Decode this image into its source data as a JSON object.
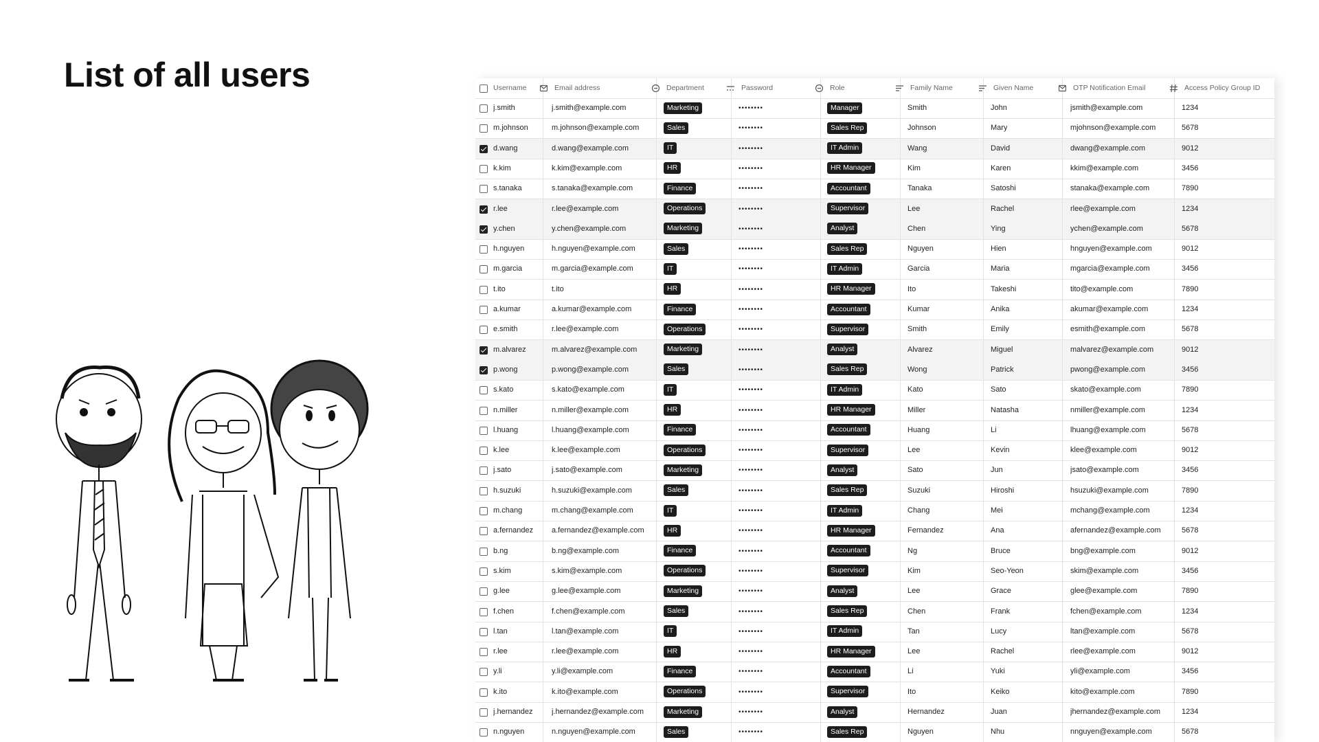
{
  "header": {
    "title": "List of all users"
  },
  "table": {
    "columns": [
      "Username",
      "Email address",
      "Department",
      "Password",
      "Role",
      "Family Name",
      "Given Name",
      "OTP Notification Email",
      "Access Policy Group ID"
    ],
    "rows": [
      {
        "selected": false,
        "username": "j.smith",
        "email": "j.smith@example.com",
        "department": "Marketing",
        "password": "••••••••",
        "role": "Manager",
        "family_name": "Smith",
        "given_name": "John",
        "otp_email": "jsmith@example.com",
        "access_policy_group_id": 1234
      },
      {
        "selected": false,
        "username": "m.johnson",
        "email": "m.johnson@example.com",
        "department": "Sales",
        "password": "••••••••",
        "role": "Sales Rep",
        "family_name": "Johnson",
        "given_name": "Mary",
        "otp_email": "mjohnson@example.com",
        "access_policy_group_id": 5678
      },
      {
        "selected": true,
        "username": "d.wang",
        "email": "d.wang@example.com",
        "department": "IT",
        "password": "••••••••",
        "role": "IT Admin",
        "family_name": "Wang",
        "given_name": "David",
        "otp_email": "dwang@example.com",
        "access_policy_group_id": 9012
      },
      {
        "selected": false,
        "username": "k.kim",
        "email": "k.kim@example.com",
        "department": "HR",
        "password": "••••••••",
        "role": "HR Manager",
        "family_name": "Kim",
        "given_name": "Karen",
        "otp_email": "kkim@example.com",
        "access_policy_group_id": 3456
      },
      {
        "selected": false,
        "username": "s.tanaka",
        "email": "s.tanaka@example.com",
        "department": "Finance",
        "password": "••••••••",
        "role": "Accountant",
        "family_name": "Tanaka",
        "given_name": "Satoshi",
        "otp_email": "stanaka@example.com",
        "access_policy_group_id": 7890
      },
      {
        "selected": true,
        "username": "r.lee",
        "email": "r.lee@example.com",
        "department": "Operations",
        "password": "••••••••",
        "role": "Supervisor",
        "family_name": "Lee",
        "given_name": "Rachel",
        "otp_email": "rlee@example.com",
        "access_policy_group_id": 1234
      },
      {
        "selected": true,
        "username": "y.chen",
        "email": "y.chen@example.com",
        "department": "Marketing",
        "password": "••••••••",
        "role": "Analyst",
        "family_name": "Chen",
        "given_name": "Ying",
        "otp_email": "ychen@example.com",
        "access_policy_group_id": 5678
      },
      {
        "selected": false,
        "username": "h.nguyen",
        "email": "h.nguyen@example.com",
        "department": "Sales",
        "password": "••••••••",
        "role": "Sales Rep",
        "family_name": "Nguyen",
        "given_name": "Hien",
        "otp_email": "hnguyen@example.com",
        "access_policy_group_id": 9012
      },
      {
        "selected": false,
        "username": "m.garcia",
        "email": "m.garcia@example.com",
        "department": "IT",
        "password": "••••••••",
        "role": "IT Admin",
        "family_name": "Garcia",
        "given_name": "Maria",
        "otp_email": "mgarcia@example.com",
        "access_policy_group_id": 3456
      },
      {
        "selected": false,
        "username": "t.ito",
        "email": "t.ito",
        "department": "HR",
        "password": "••••••••",
        "role": "HR Manager",
        "family_name": "Ito",
        "given_name": "Takeshi",
        "otp_email": "tito@example.com",
        "access_policy_group_id": 7890
      },
      {
        "selected": false,
        "username": "a.kumar",
        "email": "a.kumar@example.com",
        "department": "Finance",
        "password": "••••••••",
        "role": "Accountant",
        "family_name": "Kumar",
        "given_name": "Anika",
        "otp_email": "akumar@example.com",
        "access_policy_group_id": 1234
      },
      {
        "selected": false,
        "username": "e.smith",
        "email": "r.lee@example.com",
        "department": "Operations",
        "password": "••••••••",
        "role": "Supervisor",
        "family_name": "Smith",
        "given_name": "Emily",
        "otp_email": "esmith@example.com",
        "access_policy_group_id": 5678
      },
      {
        "selected": true,
        "username": "m.alvarez",
        "email": "m.alvarez@example.com",
        "department": "Marketing",
        "password": "••••••••",
        "role": "Analyst",
        "family_name": "Alvarez",
        "given_name": "Miguel",
        "otp_email": "malvarez@example.com",
        "access_policy_group_id": 9012
      },
      {
        "selected": true,
        "username": "p.wong",
        "email": "p.wong@example.com",
        "department": "Sales",
        "password": "••••••••",
        "role": "Sales Rep",
        "family_name": "Wong",
        "given_name": "Patrick",
        "otp_email": "pwong@example.com",
        "access_policy_group_id": 3456
      },
      {
        "selected": false,
        "username": "s.kato",
        "email": "s.kato@example.com",
        "department": "IT",
        "password": "••••••••",
        "role": "IT Admin",
        "family_name": "Kato",
        "given_name": "Sato",
        "otp_email": "skato@example.com",
        "access_policy_group_id": 7890
      },
      {
        "selected": false,
        "username": "n.miller",
        "email": "n.miller@example.com",
        "department": "HR",
        "password": "••••••••",
        "role": "HR Manager",
        "family_name": "Miller",
        "given_name": "Natasha",
        "otp_email": "nmiller@example.com",
        "access_policy_group_id": 1234
      },
      {
        "selected": false,
        "username": "l.huang",
        "email": "l.huang@example.com",
        "department": "Finance",
        "password": "••••••••",
        "role": "Accountant",
        "family_name": "Huang",
        "given_name": "Li",
        "otp_email": "lhuang@example.com",
        "access_policy_group_id": 5678
      },
      {
        "selected": false,
        "username": "k.lee",
        "email": "k.lee@example.com",
        "department": "Operations",
        "password": "••••••••",
        "role": "Supervisor",
        "family_name": "Lee",
        "given_name": "Kevin",
        "otp_email": "klee@example.com",
        "access_policy_group_id": 9012
      },
      {
        "selected": false,
        "username": "j.sato",
        "email": "j.sato@example.com",
        "department": "Marketing",
        "password": "••••••••",
        "role": "Analyst",
        "family_name": "Sato",
        "given_name": "Jun",
        "otp_email": "jsato@example.com",
        "access_policy_group_id": 3456
      },
      {
        "selected": false,
        "username": "h.suzuki",
        "email": "h.suzuki@example.com",
        "department": "Sales",
        "password": "••••••••",
        "role": "Sales Rep",
        "family_name": "Suzuki",
        "given_name": "Hiroshi",
        "otp_email": "hsuzuki@example.com",
        "access_policy_group_id": 7890
      },
      {
        "selected": false,
        "username": "m.chang",
        "email": "m.chang@example.com",
        "department": "IT",
        "password": "••••••••",
        "role": "IT Admin",
        "family_name": "Chang",
        "given_name": "Mei",
        "otp_email": "mchang@example.com",
        "access_policy_group_id": 1234
      },
      {
        "selected": false,
        "username": "a.fernandez",
        "email": "a.fernandez@example.com",
        "department": "HR",
        "password": "••••••••",
        "role": "HR Manager",
        "family_name": "Fernandez",
        "given_name": "Ana",
        "otp_email": "afernandez@example.com",
        "access_policy_group_id": 5678
      },
      {
        "selected": false,
        "username": "b.ng",
        "email": "b.ng@example.com",
        "department": "Finance",
        "password": "••••••••",
        "role": "Accountant",
        "family_name": "Ng",
        "given_name": "Bruce",
        "otp_email": "bng@example.com",
        "access_policy_group_id": 9012
      },
      {
        "selected": false,
        "username": "s.kim",
        "email": "s.kim@example.com",
        "department": "Operations",
        "password": "••••••••",
        "role": "Supervisor",
        "family_name": "Kim",
        "given_name": "Seo-Yeon",
        "otp_email": "skim@example.com",
        "access_policy_group_id": 3456
      },
      {
        "selected": false,
        "username": "g.lee",
        "email": "g.lee@example.com",
        "department": "Marketing",
        "password": "••••••••",
        "role": "Analyst",
        "family_name": "Lee",
        "given_name": "Grace",
        "otp_email": "glee@example.com",
        "access_policy_group_id": 7890
      },
      {
        "selected": false,
        "username": "f.chen",
        "email": "f.chen@example.com",
        "department": "Sales",
        "password": "••••••••",
        "role": "Sales Rep",
        "family_name": "Chen",
        "given_name": "Frank",
        "otp_email": "fchen@example.com",
        "access_policy_group_id": 1234
      },
      {
        "selected": false,
        "username": "l.tan",
        "email": "l.tan@example.com",
        "department": "IT",
        "password": "••••••••",
        "role": "IT Admin",
        "family_name": "Tan",
        "given_name": "Lucy",
        "otp_email": "ltan@example.com",
        "access_policy_group_id": 5678
      },
      {
        "selected": false,
        "username": "r.lee",
        "email": "r.lee@example.com",
        "department": "HR",
        "password": "••••••••",
        "role": "HR Manager",
        "family_name": "Lee",
        "given_name": "Rachel",
        "otp_email": "rlee@example.com",
        "access_policy_group_id": 9012
      },
      {
        "selected": false,
        "username": "y.li",
        "email": "y.li@example.com",
        "department": "Finance",
        "password": "••••••••",
        "role": "Accountant",
        "family_name": "Li",
        "given_name": "Yuki",
        "otp_email": "yli@example.com",
        "access_policy_group_id": 3456
      },
      {
        "selected": false,
        "username": "k.ito",
        "email": "k.ito@example.com",
        "department": "Operations",
        "password": "••••••••",
        "role": "Supervisor",
        "family_name": "Ito",
        "given_name": "Keiko",
        "otp_email": "kito@example.com",
        "access_policy_group_id": 7890
      },
      {
        "selected": false,
        "username": "j.hernandez",
        "email": "j.hernandez@example.com",
        "department": "Marketing",
        "password": "••••••••",
        "role": "Analyst",
        "family_name": "Hernandez",
        "given_name": "Juan",
        "otp_email": "jhernandez@example.com",
        "access_policy_group_id": 1234
      },
      {
        "selected": false,
        "username": "n.nguyen",
        "email": "n.nguyen@example.com",
        "department": "Sales",
        "password": "••••••••",
        "role": "Sales Rep",
        "family_name": "Nguyen",
        "given_name": "Nhu",
        "otp_email": "nnguyen@example.com",
        "access_policy_group_id": 5678
      }
    ]
  }
}
